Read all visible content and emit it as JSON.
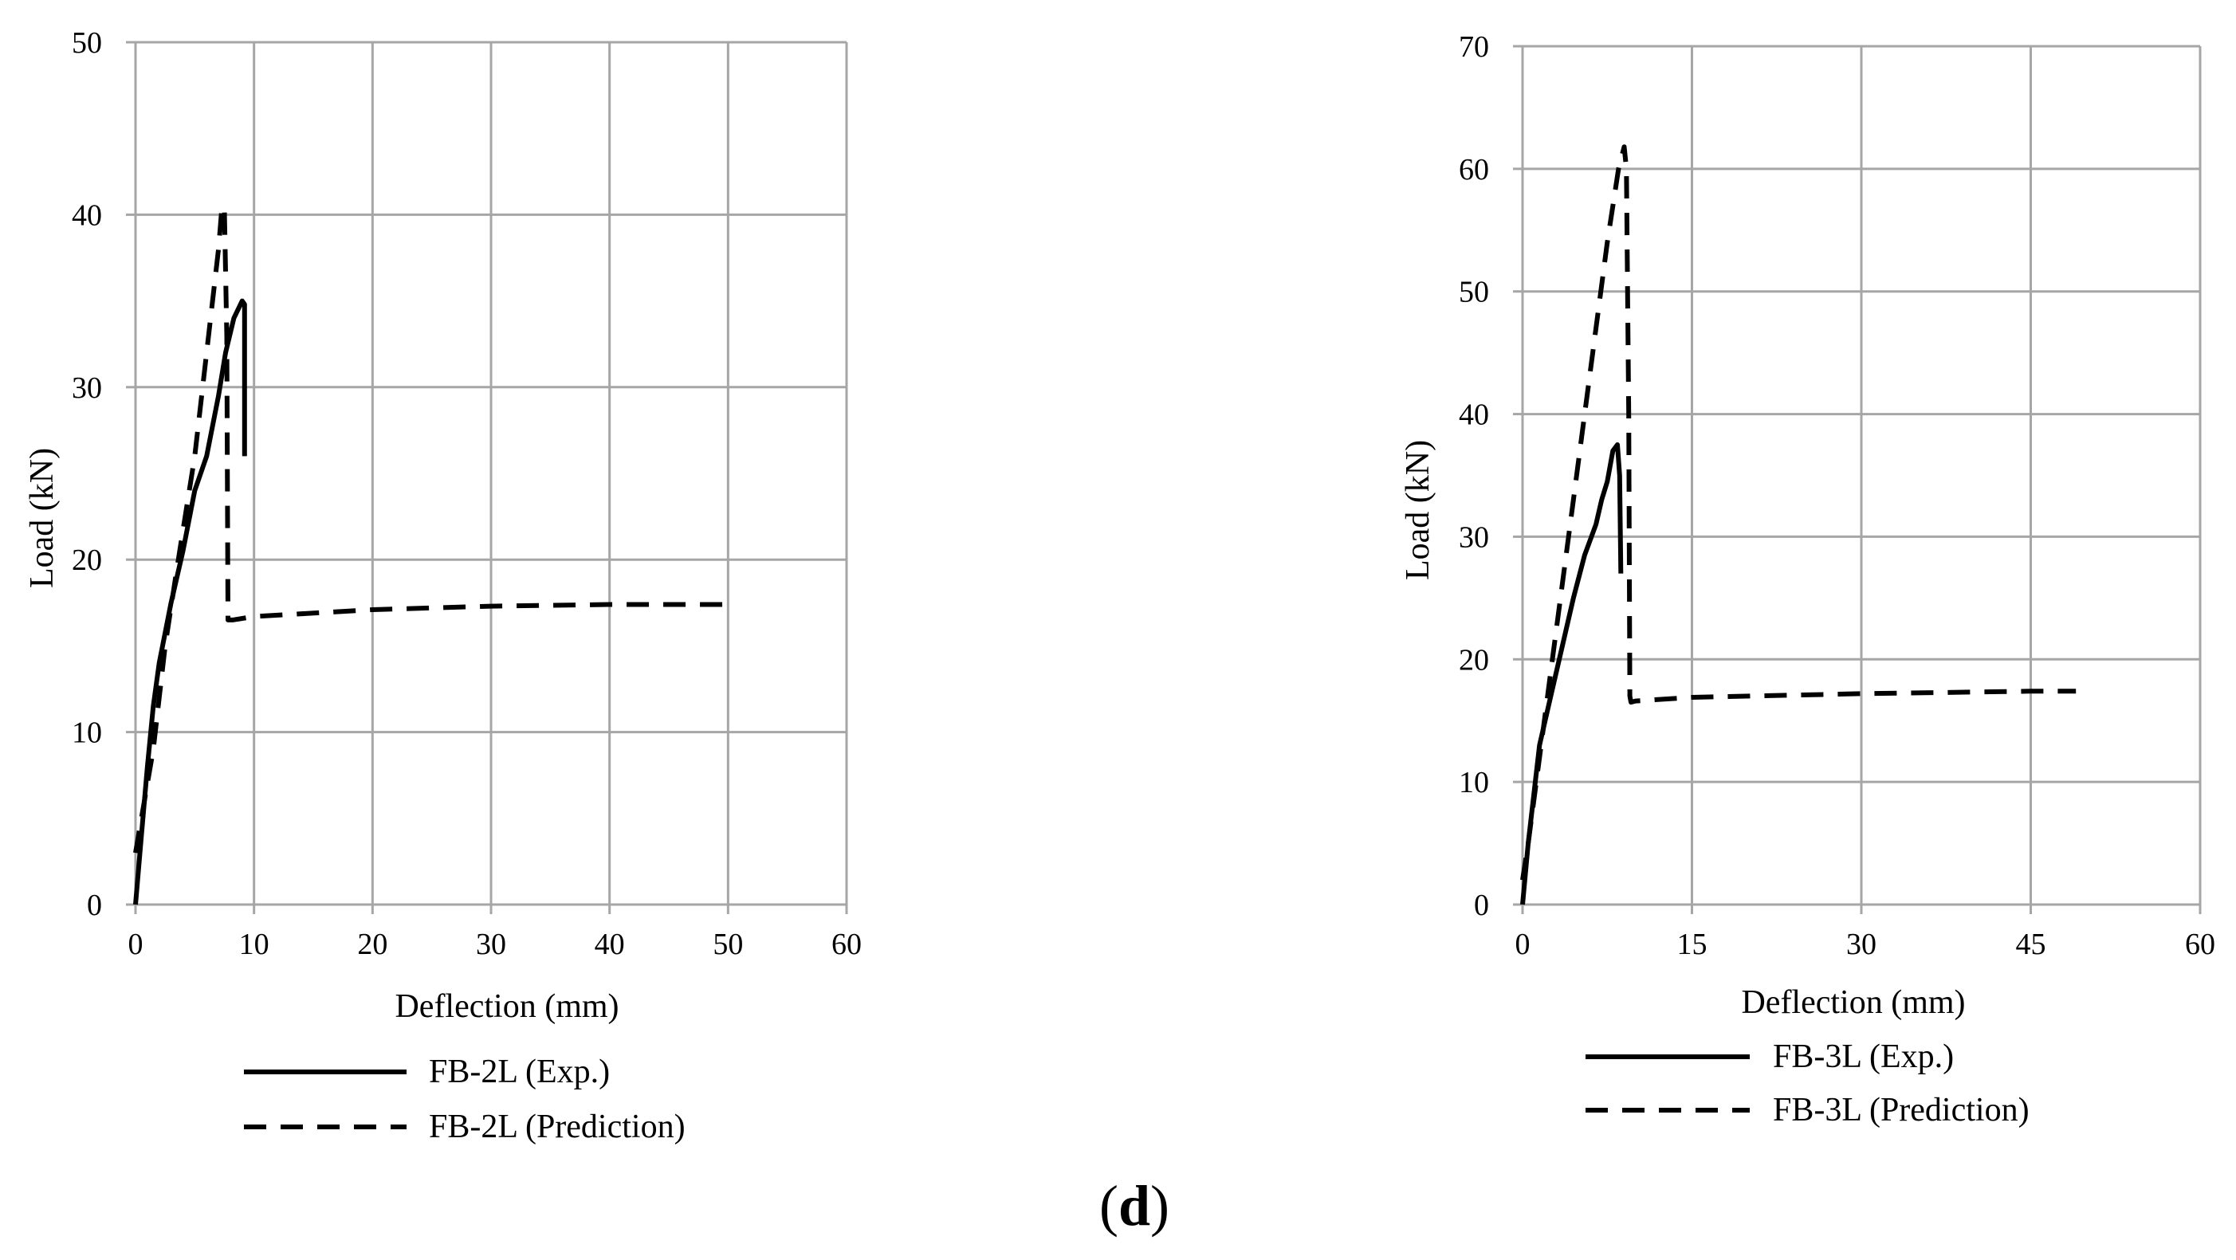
{
  "figure": {
    "panel_label_open": "(",
    "panel_label_letter": "d",
    "panel_label_close": ")"
  },
  "chart_data": [
    {
      "type": "line",
      "title": "",
      "xlabel": "Deflection (mm)",
      "ylabel": "Load (kN)",
      "xlim": [
        0,
        60
      ],
      "ylim": [
        0,
        50
      ],
      "xticks": [
        0,
        10,
        20,
        30,
        40,
        50,
        60
      ],
      "yticks": [
        0,
        10,
        20,
        30,
        40,
        50
      ],
      "grid": true,
      "legend_position": "bottom",
      "series": [
        {
          "name": "FB-2L (Exp.)",
          "style": "solid",
          "color": "#000000",
          "points": [
            [
              0,
              0
            ],
            [
              0.5,
              4
            ],
            [
              1,
              8
            ],
            [
              1.5,
              11.5
            ],
            [
              2,
              14
            ],
            [
              3,
              17.5
            ],
            [
              4,
              20.5
            ],
            [
              5,
              24
            ],
            [
              6,
              26
            ],
            [
              7,
              29.5
            ],
            [
              7.6,
              32
            ],
            [
              8.3,
              34
            ],
            [
              9,
              35
            ],
            [
              9.2,
              34.8
            ],
            [
              9.2,
              26
            ]
          ]
        },
        {
          "name": "FB-2L (Prediction)",
          "style": "dashed",
          "color": "#000000",
          "points": [
            [
              0,
              3
            ],
            [
              0.5,
              5
            ],
            [
              1.5,
              9
            ],
            [
              2.5,
              15
            ],
            [
              3.5,
              19.5
            ],
            [
              5,
              26
            ],
            [
              6,
              32
            ],
            [
              7,
              38
            ],
            [
              7.3,
              40.5
            ],
            [
              7.5,
              40.3
            ],
            [
              7.7,
              33
            ],
            [
              7.8,
              16.5
            ],
            [
              8.2,
              16.5
            ],
            [
              10,
              16.7
            ],
            [
              20,
              17.1
            ],
            [
              30,
              17.3
            ],
            [
              40,
              17.4
            ],
            [
              50,
              17.4
            ]
          ]
        }
      ]
    },
    {
      "type": "line",
      "title": "",
      "xlabel": "Deflection (mm)",
      "ylabel": "Load (kN)",
      "xlim": [
        0,
        60
      ],
      "ylim": [
        0,
        70
      ],
      "xticks": [
        0,
        15,
        30,
        45,
        60
      ],
      "yticks": [
        0,
        10,
        20,
        30,
        40,
        50,
        60,
        70
      ],
      "grid": true,
      "legend_position": "bottom",
      "series": [
        {
          "name": "FB-3L (Exp.)",
          "style": "solid",
          "color": "#000000",
          "points": [
            [
              0,
              0
            ],
            [
              0.5,
              5
            ],
            [
              1,
              9
            ],
            [
              1.5,
              13
            ],
            [
              2.5,
              17
            ],
            [
              3.5,
              21
            ],
            [
              4.5,
              25
            ],
            [
              5.5,
              28.5
            ],
            [
              6.5,
              31
            ],
            [
              7,
              33
            ],
            [
              7.5,
              34.5
            ],
            [
              8,
              37
            ],
            [
              8.4,
              37.5
            ],
            [
              8.6,
              35
            ],
            [
              8.7,
              27
            ]
          ]
        },
        {
          "name": "FB-3L (Prediction)",
          "style": "dashed",
          "color": "#000000",
          "points": [
            [
              0,
              2
            ],
            [
              0.5,
              5
            ],
            [
              1.5,
              12
            ],
            [
              2.5,
              19
            ],
            [
              3.5,
              26
            ],
            [
              4.5,
              33
            ],
            [
              5.5,
              40
            ],
            [
              6.5,
              47
            ],
            [
              7.5,
              54
            ],
            [
              8.5,
              60
            ],
            [
              9,
              61.8
            ],
            [
              9.2,
              60
            ],
            [
              9.4,
              40
            ],
            [
              9.5,
              17
            ],
            [
              9.6,
              16.5
            ],
            [
              10,
              16.6
            ],
            [
              15,
              16.9
            ],
            [
              30,
              17.2
            ],
            [
              45,
              17.4
            ],
            [
              49,
              17.4
            ]
          ]
        }
      ]
    }
  ]
}
